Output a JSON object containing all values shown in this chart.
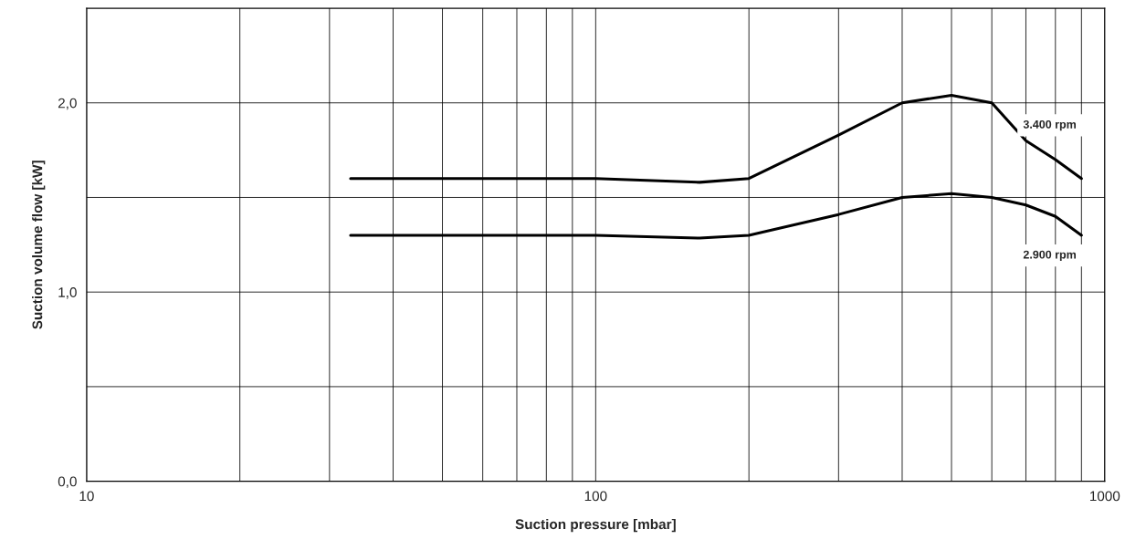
{
  "chart_data": {
    "type": "line",
    "xlabel": "Suction pressure [mbar]",
    "ylabel": "Suction volume flow [kW]",
    "log": "x",
    "xlim": [
      10,
      1000
    ],
    "xticks": [
      10,
      100,
      1000
    ],
    "ylim": [
      0,
      2.5
    ],
    "yticks": [
      {
        "value": 0,
        "label": "0,0"
      },
      {
        "value": 0.5,
        "label": null
      },
      {
        "value": 1,
        "label": "1,0"
      },
      {
        "value": 1.5,
        "label": null
      },
      {
        "value": 2,
        "label": "2,0"
      },
      {
        "value": 2.5,
        "label": null
      }
    ],
    "grid": true,
    "legend": false,
    "marker": "none",
    "line_style": "solid",
    "series": [
      {
        "name": "3.400 rpm",
        "color": "#000000",
        "x": [
          33,
          50,
          100,
          160,
          200,
          300,
          400,
          500,
          600,
          700,
          800,
          900
        ],
        "values": [
          1.6,
          1.6,
          1.6,
          1.58,
          1.6,
          1.83,
          2.0,
          2.04,
          2.0,
          1.8,
          1.7,
          1.6
        ]
      },
      {
        "name": "2.900 rpm",
        "color": "#000000",
        "x": [
          33,
          50,
          100,
          160,
          200,
          300,
          400,
          500,
          600,
          700,
          800,
          900
        ],
        "values": [
          1.3,
          1.3,
          1.3,
          1.285,
          1.3,
          1.41,
          1.5,
          1.52,
          1.5,
          1.46,
          1.4,
          1.3
        ]
      }
    ]
  }
}
